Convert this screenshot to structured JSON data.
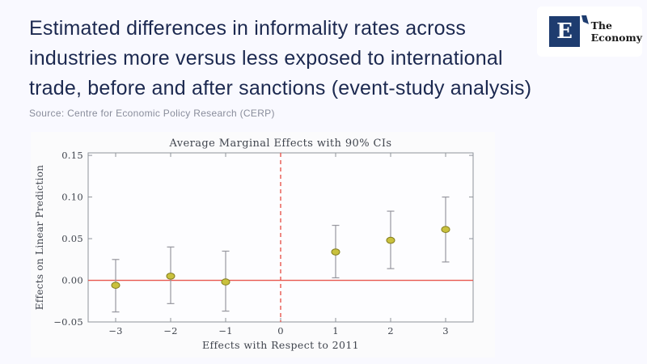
{
  "header": {
    "title_line1": "Estimated differences in informality rates across",
    "title_line2": "industries more versus less exposed to international",
    "title_line3": "trade, before and after sanctions (event-study analysis)",
    "source": "Source: Centre for Economic Policy Research (CERP)"
  },
  "logo": {
    "letter": "E",
    "name_top": "The",
    "name_bottom": "Economy"
  },
  "colors": {
    "page_bg": "#f9f9ff",
    "panel_bg": "#fbfbfc",
    "title_text": "#1c2950",
    "source_text": "#898d9b",
    "logo_navy": "#1e3c6f",
    "plot_bg": "#fdfdff",
    "plot_border": "#8e939a",
    "whisker": "#97979f",
    "marker_fill": "#c9c13d",
    "marker_edge": "#847e20",
    "reference_red": "#e8564e",
    "chart_text": "#40454e"
  },
  "chart_data": {
    "type": "scatter",
    "subtype": "event-study-errorbar",
    "title": "Average Marginal Effects with 90% CIs",
    "xlabel": "Effects with Respect to 2011",
    "ylabel": "Effects on Linear Prediction",
    "confidence_level": "90%",
    "xlim": [
      -3.5,
      3.5
    ],
    "ylim": [
      -0.05,
      0.153
    ],
    "xticks": [
      -3,
      -2,
      -1,
      0,
      1,
      2,
      3
    ],
    "yticks": [
      -0.05,
      0,
      0.05,
      0.1,
      0.15
    ],
    "grid": false,
    "legend": null,
    "reference_lines": {
      "horizontal_y": 0,
      "vertical_x": 0,
      "vertical_style": "dashed"
    },
    "points": [
      {
        "x": -3,
        "estimate": -0.006,
        "ci_low": -0.038,
        "ci_high": 0.025
      },
      {
        "x": -2,
        "estimate": 0.005,
        "ci_low": -0.028,
        "ci_high": 0.04
      },
      {
        "x": -1,
        "estimate": -0.002,
        "ci_low": -0.037,
        "ci_high": 0.035
      },
      {
        "x": 1,
        "estimate": 0.034,
        "ci_low": 0.003,
        "ci_high": 0.066
      },
      {
        "x": 2,
        "estimate": 0.048,
        "ci_low": 0.014,
        "ci_high": 0.083
      },
      {
        "x": 3,
        "estimate": 0.061,
        "ci_low": 0.022,
        "ci_high": 0.1
      }
    ]
  }
}
